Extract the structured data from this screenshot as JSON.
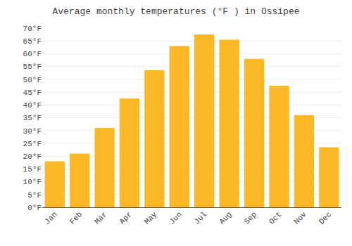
{
  "chart_data": {
    "type": "bar",
    "title": "Average monthly temperatures (°F ) in Ossipee",
    "categories": [
      "Jan",
      "Feb",
      "Mar",
      "Apr",
      "May",
      "Jun",
      "Jul",
      "Aug",
      "Sep",
      "Oct",
      "Nov",
      "Dec"
    ],
    "values": [
      18,
      21,
      31,
      42.5,
      53.5,
      63,
      67.5,
      65.5,
      58,
      47.5,
      36,
      23.5
    ],
    "color": "#FDB827",
    "ylim": [
      0,
      70
    ],
    "yticks": [
      {
        "value": 0,
        "label": "0°F"
      },
      {
        "value": 5,
        "label": "5°F"
      },
      {
        "value": 10,
        "label": "10°F"
      },
      {
        "value": 15,
        "label": "15°F"
      },
      {
        "value": 20,
        "label": "20°F"
      },
      {
        "value": 25,
        "label": "25°F"
      },
      {
        "value": 30,
        "label": "30°F"
      },
      {
        "value": 35,
        "label": "35°F"
      },
      {
        "value": 40,
        "label": "40°F"
      },
      {
        "value": 45,
        "label": "45°F"
      },
      {
        "value": 50,
        "label": "50°F"
      },
      {
        "value": 55,
        "label": "55°F"
      },
      {
        "value": 60,
        "label": "60°F"
      },
      {
        "value": 65,
        "label": "65°F"
      },
      {
        "value": 70,
        "label": "70°F"
      }
    ],
    "grid": true
  }
}
